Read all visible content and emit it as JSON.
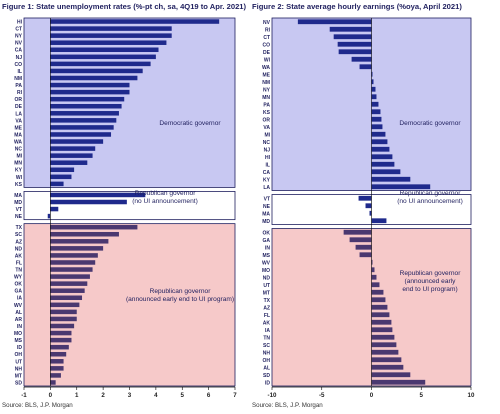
{
  "footer": {
    "source_left": "Source: BLS, J.P. Morgan",
    "source_right": "Source: BLS, J.P. Morgan"
  },
  "colors": {
    "dem_bg": "#c8c8f2",
    "rep_bg": "#f6c9c9",
    "mid_bg": "#ffffff",
    "bar_dark": "#1f2a8c",
    "bar_red": "#4a3870",
    "border": "#1f1f5e"
  },
  "chart_data": [
    {
      "type": "bar",
      "orientation": "horizontal",
      "title": "Figure 1: State unemployment rates (%-pt ch, sa, 4Q19 to Apr. 2021)",
      "xlim": [
        -1,
        7
      ],
      "xticks": [
        -1,
        0,
        1,
        2,
        3,
        4,
        5,
        6,
        7
      ],
      "groups": [
        {
          "label": "Democratic governor",
          "label_lines": [
            "Democratic governor"
          ],
          "categories": [
            "HI",
            "CT",
            "NY",
            "NV",
            "CA",
            "NJ",
            "CO",
            "IL",
            "NM",
            "PA",
            "RI",
            "OR",
            "DE",
            "LA",
            "VA",
            "ME",
            "MA",
            "WA",
            "NC",
            "MI",
            "MN",
            "KY",
            "WI",
            "KS"
          ],
          "values": [
            6.4,
            4.6,
            4.6,
            4.4,
            4.1,
            4.0,
            3.8,
            3.5,
            3.3,
            3.0,
            3.0,
            2.8,
            2.7,
            2.6,
            2.5,
            2.4,
            2.3,
            2.0,
            1.7,
            1.6,
            1.4,
            0.9,
            0.8,
            0.5
          ]
        },
        {
          "label": "Republican governor (no UI announcement)",
          "label_lines": [
            "Republican governor",
            "(no UI announcement)"
          ],
          "categories": [
            "MA",
            "MD",
            "VT",
            "NE"
          ],
          "values": [
            3.6,
            2.9,
            0.3,
            -0.1
          ]
        },
        {
          "label": "Republican governor (announced early end to UI program)",
          "label_lines": [
            "Republican governor",
            "(announced early end to UI program)"
          ],
          "categories": [
            "TX",
            "SC",
            "AZ",
            "ND",
            "AK",
            "FL",
            "TN",
            "WY",
            "OK",
            "GA",
            "IA",
            "WV",
            "AL",
            "AR",
            "IN",
            "MO",
            "MS",
            "ID",
            "OH",
            "UT",
            "NH",
            "MT",
            "SD"
          ],
          "values": [
            3.3,
            2.6,
            2.2,
            2.0,
            1.8,
            1.7,
            1.6,
            1.5,
            1.4,
            1.3,
            1.2,
            1.1,
            1.0,
            1.0,
            0.9,
            0.8,
            0.8,
            0.7,
            0.6,
            0.5,
            0.5,
            0.4,
            0.2
          ]
        }
      ]
    },
    {
      "type": "bar",
      "orientation": "horizontal",
      "title": "Figure 2: State average hourly earnings (%oya, April 2021)",
      "xlim": [
        -10,
        10
      ],
      "xticks": [
        -10,
        -5,
        0,
        5,
        10
      ],
      "groups": [
        {
          "label": "Democratic governor",
          "label_lines": [
            "Democratic governor"
          ],
          "categories": [
            "NV",
            "RI",
            "CT",
            "CO",
            "DE",
            "WI",
            "WA",
            "ME",
            "NM",
            "NY",
            "MN",
            "PA",
            "KS",
            "OR",
            "VA",
            "MI",
            "NC",
            "NJ",
            "HI",
            "IL",
            "CA",
            "KY",
            "LA"
          ],
          "values": [
            -7.4,
            -4.2,
            -3.8,
            -3.4,
            -3.3,
            -2.0,
            -1.2,
            0.1,
            0.2,
            0.4,
            0.5,
            0.7,
            0.9,
            1.0,
            1.1,
            1.4,
            1.6,
            1.8,
            2.1,
            2.3,
            2.9,
            3.9,
            5.9
          ]
        },
        {
          "label": "Republican governor (no UI announcement)",
          "label_lines": [
            "Republican governor",
            "(no UI announcement)"
          ],
          "categories": [
            "VT",
            "NE",
            "MA",
            "MD"
          ],
          "values": [
            -1.3,
            -0.6,
            -0.2,
            1.5
          ]
        },
        {
          "label": "Republican governor (announced early end to UI program)",
          "label_lines": [
            "Republican governor",
            "(announced early",
            "end to UI program)"
          ],
          "categories": [
            "OK",
            "GA",
            "IN",
            "MS",
            "WV",
            "MO",
            "ND",
            "UT",
            "MT",
            "TX",
            "AZ",
            "FL",
            "AK",
            "IA",
            "TN",
            "SC",
            "NH",
            "OH",
            "AL",
            "SD",
            "ID"
          ],
          "values": [
            -2.8,
            -2.2,
            -1.6,
            -1.2,
            0.1,
            0.3,
            0.5,
            0.8,
            1.2,
            1.4,
            1.6,
            1.8,
            2.0,
            2.1,
            2.3,
            2.5,
            2.7,
            3.0,
            3.2,
            3.9,
            5.4
          ]
        }
      ]
    }
  ]
}
